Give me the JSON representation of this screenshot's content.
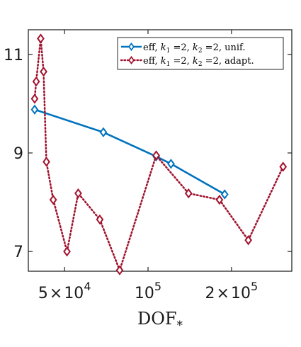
{
  "chart_data": {
    "type": "line",
    "xscale": "log",
    "xlim": [
      37000,
      330000
    ],
    "ylim": [
      6.6,
      11.5
    ],
    "x_ticks": [
      {
        "value": 50000,
        "mant": "5",
        "exp": "4"
      },
      {
        "value": 100000,
        "mant": "",
        "exp": "5"
      },
      {
        "value": 200000,
        "mant": "2",
        "exp": "5"
      }
    ],
    "y_ticks": [
      {
        "value": 7,
        "label": "7"
      },
      {
        "value": 9,
        "label": "9"
      },
      {
        "value": 11,
        "label": "11"
      }
    ],
    "xlabel": {
      "main": "DOF",
      "sub": "*"
    },
    "ylabel": "",
    "title": "",
    "grid": false,
    "legend_position": "top-right",
    "series": [
      {
        "name": "eff, k1 =2, k2 =2, unif.",
        "legend_html": {
          "pre": "eff, ",
          "k1": "k",
          "k1sub": "1",
          "mid1": " =2, ",
          "k2": "k",
          "k2sub": "2",
          "post": " =2, unif."
        },
        "color": "#0072BD",
        "line_style": "solid",
        "marker": "diamond",
        "x": [
          39000,
          69000,
          107000,
          121000,
          189000
        ],
        "y": [
          9.88,
          9.42,
          8.93,
          8.78,
          8.16
        ]
      },
      {
        "name": "eff, k1 =2, k2 =2, adapt.",
        "legend_html": {
          "pre": "eff, ",
          "k1": "k",
          "k1sub": "1",
          "mid1": " =2, ",
          "k2": "k",
          "k2sub": "2",
          "post": " =2, adapt."
        },
        "color": "#A2142F",
        "line_style": "dotted",
        "marker": "diamond",
        "x": [
          39000,
          39500,
          41000,
          42000,
          43000,
          45500,
          51000,
          56000,
          67000,
          79000,
          107000,
          140000,
          181000,
          230000,
          307000
        ],
        "y": [
          10.1,
          10.45,
          11.32,
          10.65,
          8.82,
          8.05,
          7.0,
          8.18,
          7.65,
          6.62,
          8.95,
          8.18,
          8.05,
          7.23,
          8.72
        ]
      }
    ]
  }
}
